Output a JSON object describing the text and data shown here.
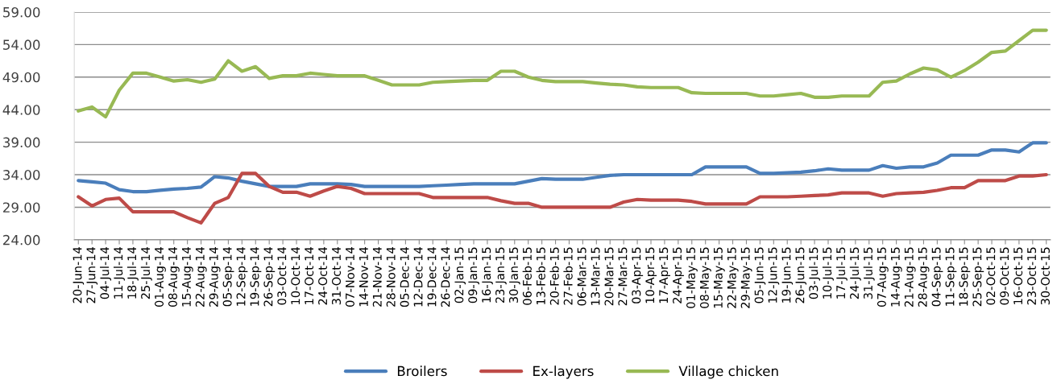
{
  "chart_data": {
    "type": "line",
    "categories": [
      "20-Jun-14",
      "27-Jun-14",
      "04-Jul-14",
      "11-Jul-14",
      "18-Jul-14",
      "25-Jul-14",
      "01-Aug-14",
      "08-Aug-14",
      "15-Aug-14",
      "22-Aug-14",
      "29-Aug-14",
      "05-Sep-14",
      "12-Sep-14",
      "19-Sep-14",
      "26-Sep-14",
      "03-Oct-14",
      "10-Oct-14",
      "17-Oct-14",
      "24-Oct-14",
      "31-Oct-14",
      "07-Nov-14",
      "14-Nov-14",
      "21-Nov-14",
      "28-Nov-14",
      "05-Dec-14",
      "12-Dec-14",
      "19-Dec-14",
      "26-Dec-14",
      "02-Jan-15",
      "09-Jan-15",
      "16-Jan-15",
      "23-Jan-15",
      "30-Jan-15",
      "06-Feb-15",
      "13-Feb-15",
      "20-Feb-15",
      "27-Feb-15",
      "06-Mar-15",
      "13-Mar-15",
      "20-Mar-15",
      "27-Mar-15",
      "03-Apr-15",
      "10-Apr-15",
      "17-Apr-15",
      "24-Apr-15",
      "01-May-15",
      "08-May-15",
      "15-May-15",
      "22-May-15",
      "29-May-15",
      "05-Jun-15",
      "12-Jun-15",
      "19-Jun-15",
      "26-Jun-15",
      "03-Jul-15",
      "10-Jul-15",
      "17-Jul-15",
      "24-Jul-15",
      "31-Jul-15",
      "07-Aug-15",
      "14-Aug-15",
      "21-Aug-15",
      "28-Aug-15",
      "04-Sep-15",
      "11-Sep-15",
      "18-Sep-15",
      "25-Sep-15",
      "02-Oct-15",
      "09-Oct-15",
      "16-Oct-15",
      "23-Oct-15",
      "30-Oct-15"
    ],
    "series": [
      {
        "name": "Broilers",
        "color": "#4a7ebb",
        "values": [
          33.1,
          32.9,
          32.7,
          31.7,
          31.4,
          31.4,
          31.6,
          31.8,
          31.9,
          32.1,
          33.7,
          33.5,
          33.0,
          32.6,
          32.2,
          32.2,
          32.2,
          32.6,
          32.6,
          32.6,
          32.5,
          32.2,
          32.2,
          32.2,
          32.2,
          32.2,
          32.3,
          32.4,
          32.5,
          32.6,
          32.6,
          32.6,
          32.6,
          33.0,
          33.4,
          33.3,
          33.3,
          33.3,
          33.6,
          33.9,
          34.0,
          34.0,
          34.0,
          34.0,
          34.0,
          34.0,
          35.2,
          35.2,
          35.2,
          35.2,
          34.2,
          34.2,
          34.3,
          34.4,
          34.6,
          34.9,
          34.7,
          34.7,
          34.7,
          35.4,
          35.0,
          35.2,
          35.2,
          35.8,
          37.0,
          37.0,
          37.0,
          37.8,
          37.8,
          37.5,
          38.9,
          38.9
        ]
      },
      {
        "name": "Ex-layers",
        "color": "#be4b48",
        "values": [
          30.6,
          29.2,
          30.2,
          30.4,
          28.3,
          28.3,
          28.3,
          28.3,
          27.4,
          26.6,
          29.6,
          30.5,
          34.2,
          34.2,
          32.2,
          31.3,
          31.3,
          30.7,
          31.5,
          32.2,
          31.9,
          31.1,
          31.1,
          31.1,
          31.1,
          31.1,
          30.5,
          30.5,
          30.5,
          30.5,
          30.5,
          30.0,
          29.6,
          29.6,
          29.0,
          29.0,
          29.0,
          29.0,
          29.0,
          29.0,
          29.8,
          30.2,
          30.1,
          30.1,
          30.1,
          29.9,
          29.5,
          29.5,
          29.5,
          29.5,
          30.6,
          30.6,
          30.6,
          30.7,
          30.8,
          30.9,
          31.2,
          31.2,
          31.2,
          30.7,
          31.1,
          31.2,
          31.3,
          31.6,
          32.0,
          32.0,
          33.1,
          33.1,
          33.1,
          33.8,
          33.8,
          34.0
        ]
      },
      {
        "name": "Village chicken",
        "color": "#98b954",
        "values": [
          43.8,
          44.4,
          42.9,
          47.0,
          49.6,
          49.6,
          49.0,
          48.4,
          48.6,
          48.2,
          48.7,
          51.5,
          49.9,
          50.6,
          48.8,
          49.2,
          49.2,
          49.6,
          49.4,
          49.2,
          49.2,
          49.2,
          48.5,
          47.8,
          47.8,
          47.8,
          48.2,
          48.3,
          48.4,
          48.5,
          48.5,
          49.9,
          49.9,
          49.0,
          48.5,
          48.3,
          48.3,
          48.3,
          48.1,
          47.9,
          47.8,
          47.5,
          47.4,
          47.4,
          47.4,
          46.6,
          46.5,
          46.5,
          46.5,
          46.5,
          46.1,
          46.1,
          46.3,
          46.5,
          45.9,
          45.9,
          46.1,
          46.1,
          46.1,
          48.2,
          48.4,
          49.5,
          50.4,
          50.1,
          49.0,
          50.0,
          51.3,
          52.8,
          53.0,
          54.6,
          56.2,
          56.2
        ]
      }
    ],
    "ylim": [
      24,
      59
    ],
    "yticks": [
      {
        "value": 24,
        "label": "24.00"
      },
      {
        "value": 29,
        "label": "29.00"
      },
      {
        "value": 34,
        "label": "34.00"
      },
      {
        "value": 39,
        "label": "39.00"
      },
      {
        "value": 44,
        "label": "44.00"
      },
      {
        "value": 49,
        "label": "49.00"
      },
      {
        "value": 54,
        "label": "54.00"
      },
      {
        "value": 59,
        "label": "59.00"
      }
    ],
    "grid": "y",
    "legend": "bottom",
    "marker": "none",
    "line_style": "solid"
  }
}
